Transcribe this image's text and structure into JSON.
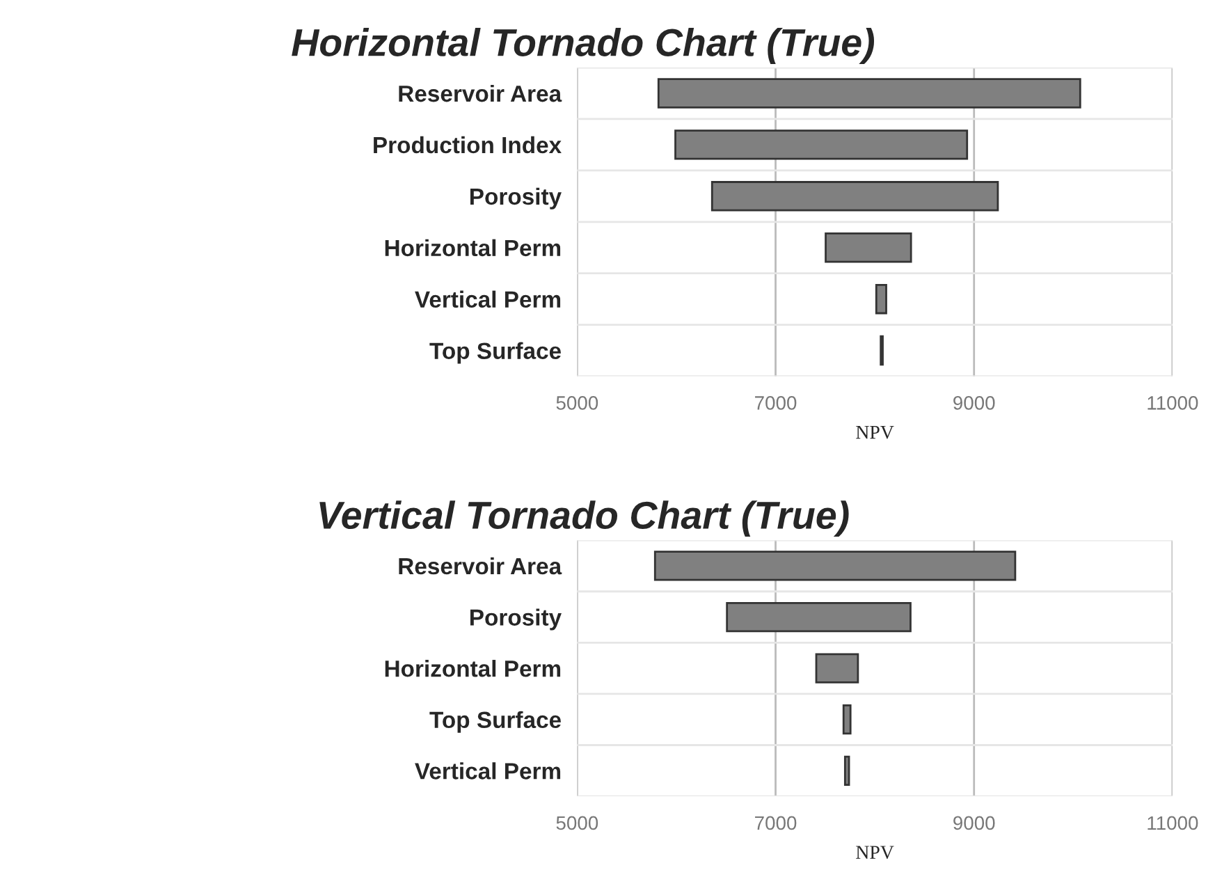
{
  "chart_data": [
    {
      "type": "bar",
      "orientation": "horizontal",
      "title": "Horizontal Tornado Chart (True)",
      "xlabel": "NPV",
      "categories": [
        "Reservoir Area",
        "Production Index",
        "Porosity",
        "Horizontal Perm",
        "Vertical Perm",
        "Top Surface"
      ],
      "base": [
        5820,
        5990,
        6360,
        7505,
        8015,
        8060
      ],
      "values": [
        4250,
        2940,
        2880,
        860,
        100,
        20
      ],
      "color": "#808080",
      "xlim": [
        5000,
        11000
      ],
      "xticks": [
        5000,
        7000,
        9000,
        11000
      ],
      "grid": "x"
    },
    {
      "type": "bar",
      "orientation": "horizontal",
      "title": "Vertical Tornado Chart (True)",
      "xlabel": "NPV",
      "categories": [
        "Reservoir Area",
        "Porosity",
        "Horizontal Perm",
        "Top Surface",
        "Vertical Perm"
      ],
      "base": [
        5785,
        6510,
        7410,
        7685,
        7700
      ],
      "values": [
        3630,
        1850,
        420,
        70,
        40
      ],
      "color": "#808080",
      "xlim": [
        5000,
        11000
      ],
      "xticks": [
        5000,
        7000,
        9000,
        11000
      ],
      "grid": "x"
    }
  ]
}
